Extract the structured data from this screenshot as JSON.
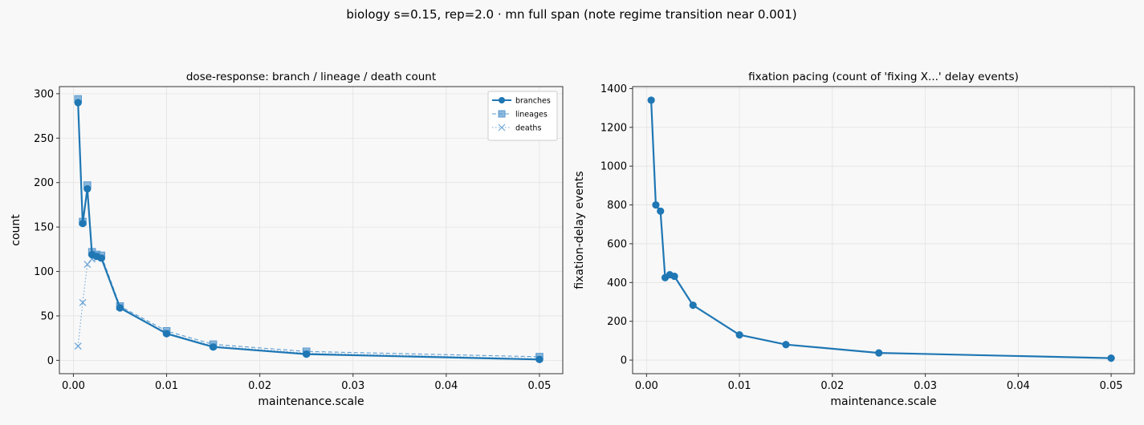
{
  "suptitle": "biology s=0.15, rep=2.0 · mn full span (note regime transition near 0.001)",
  "chart_data": [
    {
      "type": "line",
      "title": "dose-response: branch / lineage / death count",
      "xlabel": "maintenance.scale",
      "ylabel": "count",
      "xlim": [
        -0.0015,
        0.0525
      ],
      "ylim": [
        -15,
        308
      ],
      "xticks": [
        0.0,
        0.01,
        0.02,
        0.03,
        0.04,
        0.05
      ],
      "xtick_labels": [
        "0.00",
        "0.01",
        "0.02",
        "0.03",
        "0.04",
        "0.05"
      ],
      "yticks": [
        0,
        50,
        100,
        150,
        200,
        250,
        300
      ],
      "ytick_labels": [
        "0",
        "50",
        "100",
        "150",
        "200",
        "250",
        "300"
      ],
      "grid": true,
      "legend": "top-right",
      "x": [
        0.0005,
        0.001,
        0.0015,
        0.002,
        0.0025,
        0.003,
        0.005,
        0.01,
        0.015,
        0.025,
        0.05
      ],
      "series": [
        {
          "name": "branches",
          "color": "#1f77b4",
          "marker": "circle",
          "style": "solid",
          "values": [
            290,
            154,
            193,
            119,
            117,
            115,
            59,
            30,
            15,
            7,
            1
          ]
        },
        {
          "name": "lineages",
          "color": "#5b9bd0",
          "marker": "square",
          "style": "dashed",
          "values": [
            294,
            156,
            197,
            122,
            119,
            118,
            61,
            33,
            18,
            10,
            4
          ]
        },
        {
          "name": "deaths",
          "color": "#6fa7d8",
          "marker": "x",
          "style": "dotted",
          "values": [
            16,
            65,
            108,
            114,
            115,
            116,
            60,
            31,
            16,
            8,
            2
          ]
        }
      ]
    },
    {
      "type": "line",
      "title": "fixation pacing (count of 'fixing X...' delay events)",
      "xlabel": "maintenance.scale",
      "ylabel": "fixation-delay events",
      "xlim": [
        -0.0015,
        0.0525
      ],
      "ylim": [
        -70,
        1410
      ],
      "xticks": [
        0.0,
        0.01,
        0.02,
        0.03,
        0.04,
        0.05
      ],
      "xtick_labels": [
        "0.00",
        "0.01",
        "0.02",
        "0.03",
        "0.04",
        "0.05"
      ],
      "yticks": [
        0,
        200,
        400,
        600,
        800,
        1000,
        1200,
        1400
      ],
      "ytick_labels": [
        "0",
        "200",
        "400",
        "600",
        "800",
        "1000",
        "1200",
        "1400"
      ],
      "grid": true,
      "x": [
        0.0005,
        0.001,
        0.0015,
        0.002,
        0.0025,
        0.003,
        0.005,
        0.01,
        0.015,
        0.025,
        0.05
      ],
      "series": [
        {
          "color": "#1f77b4",
          "marker": "circle",
          "style": "solid",
          "values": [
            1340,
            800,
            768,
            425,
            440,
            432,
            283,
            130,
            80,
            37,
            10
          ]
        }
      ]
    }
  ]
}
